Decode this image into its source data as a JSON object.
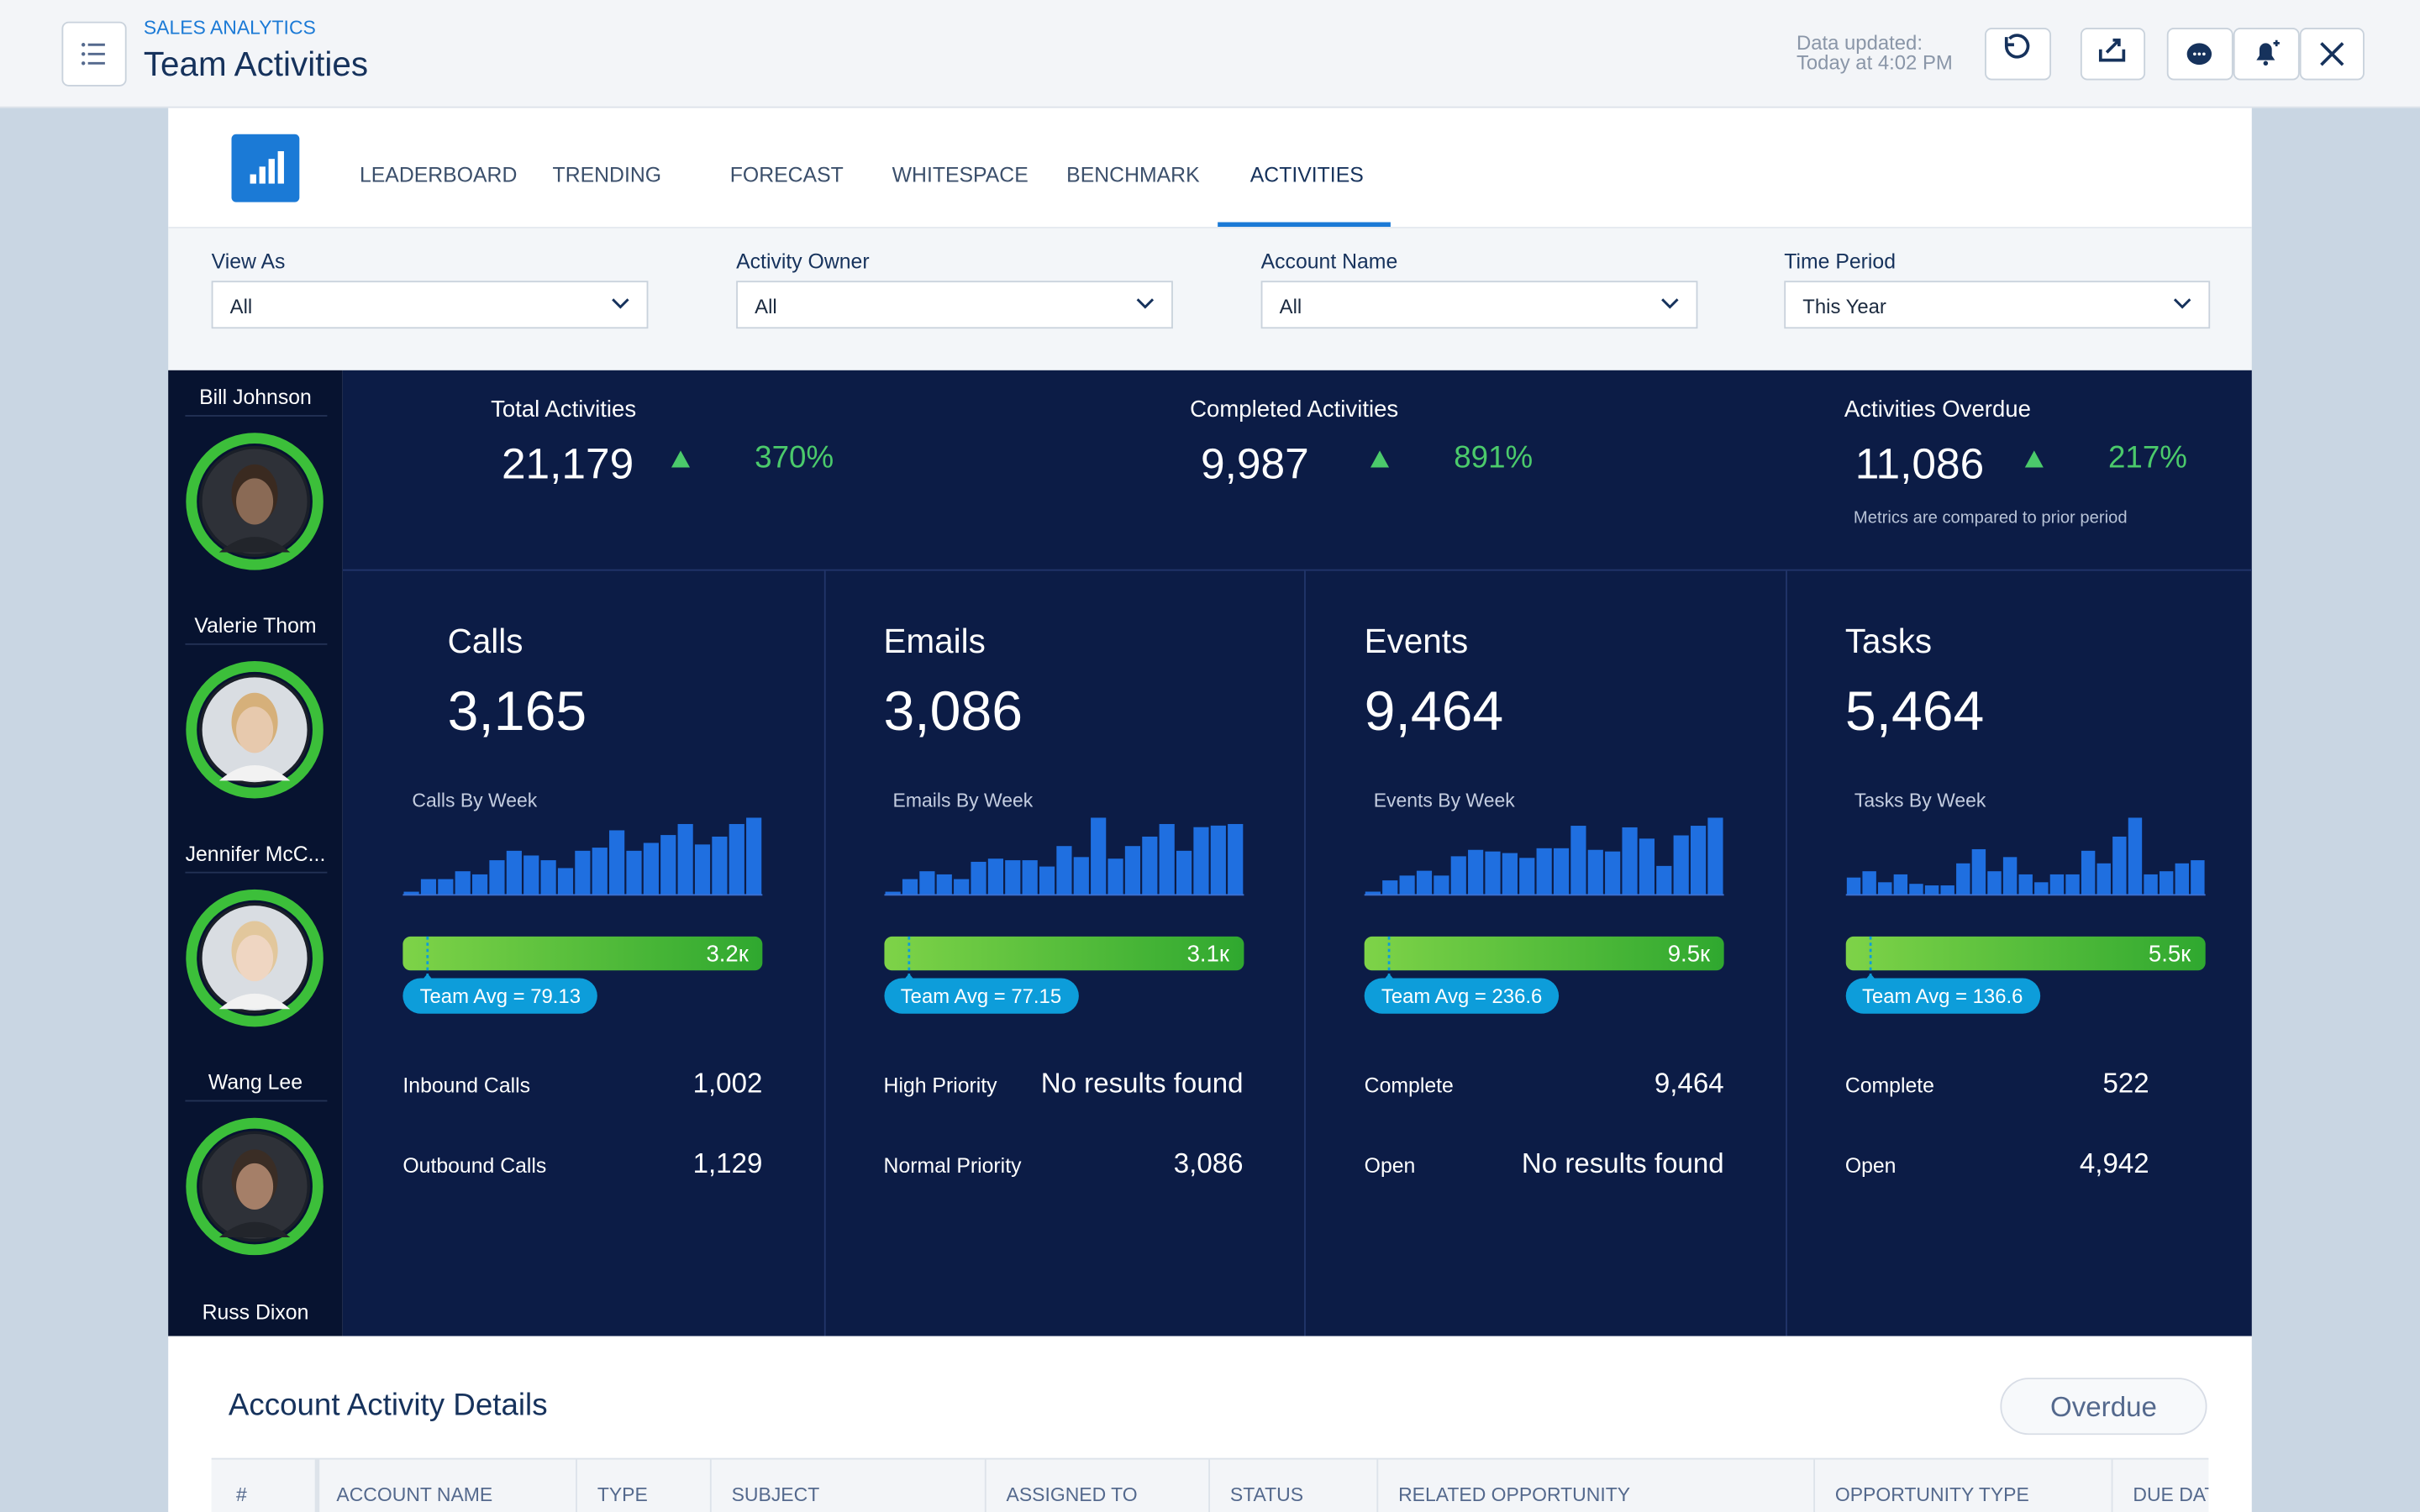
{
  "header": {
    "app": "SALES ANALYTICS",
    "title": "Team Activities",
    "updated_label": "Data updated:",
    "updated_time": "Today at 4:02 PM"
  },
  "tabs": [
    "LEADERBOARD",
    "TRENDING",
    "FORECAST",
    "WHITESPACE",
    "BENCHMARK",
    "ACTIVITIES"
  ],
  "filters": [
    {
      "label": "View As",
      "value": "All"
    },
    {
      "label": "Activity Owner",
      "value": "All"
    },
    {
      "label": "Account Name",
      "value": "All"
    },
    {
      "label": "Time Period",
      "value": "This Year"
    }
  ],
  "people": [
    "Bill Johnson",
    "Valerie Thom",
    "Jennifer McC...",
    "Wang Lee",
    "Russ Dixon"
  ],
  "kpis": [
    {
      "title": "Total Activities",
      "value": "21,179",
      "change": "370%"
    },
    {
      "title": "Completed Activities",
      "value": "9,987",
      "change": "891%"
    },
    {
      "title": "Activities Overdue",
      "value": "11,086",
      "change": "217%"
    }
  ],
  "kpi_note": "Metrics are compared to prior period",
  "cards": [
    {
      "title": "Calls",
      "value": "3,165",
      "chart_title": "Calls By Week",
      "bars": [
        2,
        10,
        10,
        15,
        13,
        22,
        28,
        25,
        22,
        17,
        28,
        30,
        41,
        28,
        33,
        38,
        45,
        32,
        37,
        45,
        49
      ],
      "total": "3.2к",
      "team_avg": "Team Avg = 79.13",
      "rows": [
        {
          "label": "Inbound Calls",
          "value": "1,002"
        },
        {
          "label": "Outbound Calls",
          "value": "1,129"
        }
      ]
    },
    {
      "title": "Emails",
      "value": "3,086",
      "chart_title": "Emails By Week",
      "bars": [
        2,
        10,
        15,
        13,
        10,
        21,
        23,
        22,
        22,
        18,
        31,
        24,
        49,
        23,
        31,
        37,
        45,
        28,
        43,
        44,
        45
      ],
      "total": "3.1к",
      "team_avg": "Team Avg = 77.15",
      "rows": [
        {
          "label": "High Priority",
          "value": "No results found"
        },
        {
          "label": "Normal Priority",
          "value": "3,086"
        }
      ]
    },
    {
      "title": "Events",
      "value": "9,464",
      "chart_title": "Events By Week",
      "bars": [
        2,
        9,
        12,
        15,
        12,
        24,
        28,
        27,
        26,
        23,
        29,
        29,
        43,
        28,
        27,
        42,
        35,
        18,
        37,
        43,
        48
      ],
      "total": "9.5к",
      "team_avg": "Team Avg = 236.6",
      "rows": [
        {
          "label": "Complete",
          "value": "9,464"
        },
        {
          "label": "Open",
          "value": "No results found"
        }
      ]
    },
    {
      "title": "Tasks",
      "value": "5,464",
      "chart_title": "Tasks By Week",
      "bars": [
        11,
        15,
        8,
        13,
        7,
        6,
        6,
        20,
        29,
        15,
        24,
        13,
        8,
        13,
        13,
        28,
        20,
        37,
        49,
        13,
        15,
        20,
        22
      ],
      "total": "5.5к",
      "team_avg": "Team Avg = 136.6",
      "rows": [
        {
          "label": "Complete",
          "value": "522"
        },
        {
          "label": "Open",
          "value": "4,942"
        }
      ]
    }
  ],
  "details": {
    "title": "Account Activity Details",
    "button": "Overdue",
    "columns": [
      "#",
      "ACCOUNT NAME",
      "TYPE",
      "SUBJECT",
      "ASSIGNED TO",
      "STATUS",
      "RELATED OPPORTUNITY",
      "OPPORTUNITY TYPE",
      "DUE DATE"
    ]
  }
}
